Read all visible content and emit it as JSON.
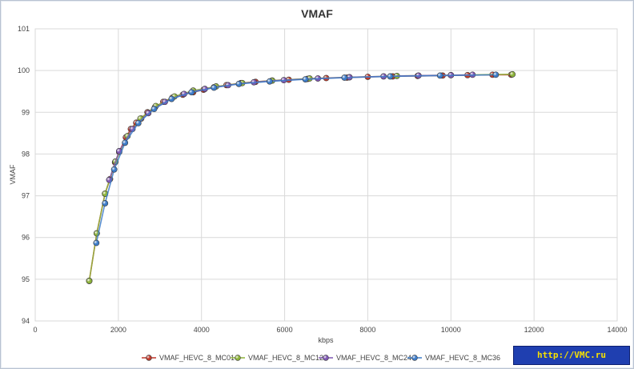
{
  "chart_data": {
    "type": "line",
    "title": "VMAF",
    "xlabel": "kbps",
    "ylabel": "VMAF",
    "xlim": [
      0,
      14000
    ],
    "ylim": [
      94,
      101
    ],
    "xticks": [
      0,
      2000,
      4000,
      6000,
      8000,
      10000,
      12000,
      14000
    ],
    "yticks": [
      94,
      95,
      96,
      97,
      98,
      99,
      100,
      101
    ],
    "grid": true,
    "legend": "bottom",
    "series": [
      {
        "name": "VMAF_HEVC_8_MC01",
        "color": "#c0392b",
        "x": [
          1300,
          1480,
          1680,
          1800,
          1920,
          2020,
          2180,
          2300,
          2430,
          2550,
          2700,
          2880,
          3080,
          3300,
          3550,
          3800,
          4050,
          4300,
          4600,
          4950,
          5300,
          5700,
          6100,
          6550,
          7000,
          7500,
          8000,
          8600,
          9200,
          9800,
          10400,
          11000,
          11450
        ],
        "y": [
          94.96,
          96.1,
          97.05,
          97.4,
          97.8,
          98.05,
          98.4,
          98.6,
          98.75,
          98.85,
          99.0,
          99.12,
          99.25,
          99.35,
          99.42,
          99.48,
          99.54,
          99.6,
          99.65,
          99.7,
          99.73,
          99.76,
          99.78,
          99.8,
          99.82,
          99.83,
          99.85,
          99.86,
          99.87,
          99.88,
          99.89,
          99.9,
          99.9
        ]
      },
      {
        "name": "VMAF_HEVC_8_MC12",
        "color": "#8db33a",
        "x": [
          1300,
          1480,
          1680,
          1930,
          2220,
          2530,
          2900,
          3350,
          3800,
          4350,
          4980,
          5700,
          6600,
          7560,
          8700,
          10000,
          11480
        ],
        "y": [
          94.96,
          96.1,
          97.05,
          97.82,
          98.43,
          98.85,
          99.15,
          99.38,
          99.52,
          99.62,
          99.7,
          99.76,
          99.81,
          99.84,
          99.87,
          99.89,
          99.91
        ]
      },
      {
        "name": "VMAF_HEVC_8_MC24",
        "color": "#7e57b2",
        "x": [
          1780,
          2020,
          2340,
          2720,
          3120,
          3580,
          4080,
          4640,
          5260,
          5980,
          6800,
          7560,
          8380,
          9220,
          10000,
          10520
        ],
        "y": [
          97.38,
          98.07,
          98.6,
          98.98,
          99.25,
          99.44,
          99.56,
          99.65,
          99.72,
          99.77,
          99.81,
          99.84,
          99.86,
          99.88,
          99.89,
          99.9
        ]
      },
      {
        "name": "VMAF_HEVC_8_MC36",
        "color": "#3d7cc9",
        "x": [
          1470,
          1680,
          1900,
          2160,
          2480,
          2860,
          3280,
          3760,
          4300,
          4900,
          5640,
          6500,
          7440,
          8540,
          9740,
          11080
        ],
        "y": [
          95.87,
          96.82,
          97.63,
          98.27,
          98.74,
          99.08,
          99.32,
          99.48,
          99.59,
          99.68,
          99.74,
          99.79,
          99.83,
          99.86,
          99.88,
          99.9
        ]
      }
    ]
  },
  "watermark": {
    "text": "http://VMC.ru"
  }
}
